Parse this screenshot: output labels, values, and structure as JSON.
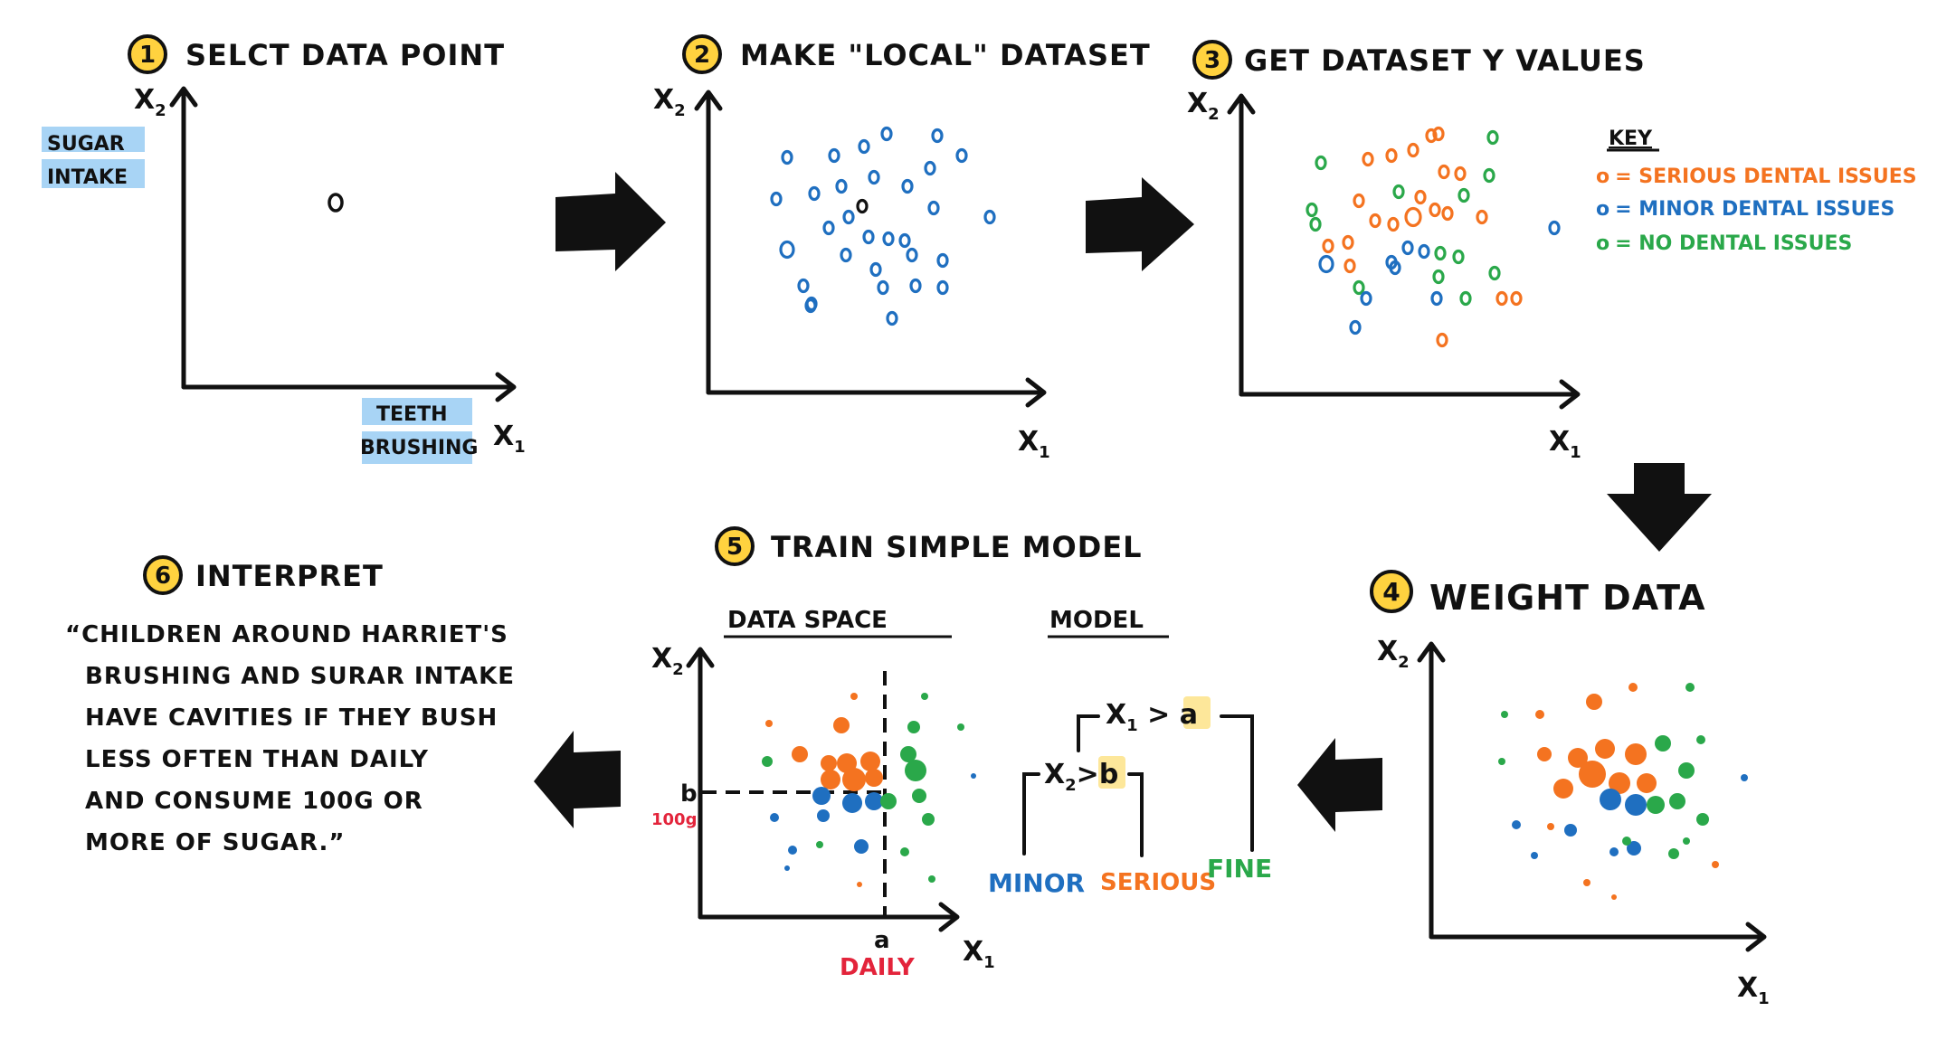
{
  "colors": {
    "serious": "#f47320",
    "minor": "#1f6fc0",
    "none": "#2aa84a",
    "number_badge": "#ffd23f",
    "highlight_blue": "#a8d4f5",
    "highlight_yellow": "#fde79a",
    "daily_red": "#e3243b"
  },
  "steps": {
    "s1": {
      "num": "1",
      "title": "SELCT DATA POINT"
    },
    "s2": {
      "num": "2",
      "title": "MAKE \"LOCAL\" DATASET"
    },
    "s3": {
      "num": "3",
      "title": "GET DATASET Y VALUES"
    },
    "s4": {
      "num": "4",
      "title": "WEIGHT DATA"
    },
    "s5": {
      "num": "5",
      "title": "TRAIN SIMPLE MODEL"
    },
    "s6": {
      "num": "6",
      "title": "INTERPRET"
    }
  },
  "axes": {
    "x": "X",
    "x_sub": "1",
    "y": "X",
    "y_sub": "2"
  },
  "panel1": {
    "y_label_line1": "SUGAR",
    "y_label_line2": "INTAKE",
    "x_label_line1": "TEETH",
    "x_label_line2": "BRUSHING"
  },
  "key": {
    "title": "KEY",
    "items": [
      {
        "symbol": "o",
        "label": "= SERIOUS DENTAL ISSUES",
        "color": "#f47320"
      },
      {
        "symbol": "o",
        "label": "= MINOR DENTAL ISSUES",
        "color": "#1f6fc0"
      },
      {
        "symbol": "o",
        "label": "= NO DENTAL ISSUES",
        "color": "#2aa84a"
      }
    ]
  },
  "panel5": {
    "data_space_title": "DATA SPACE",
    "model_title": "MODEL",
    "b_label": "b",
    "a_label": "a",
    "b_value": "100g",
    "a_value": "DAILY",
    "root_left": "X",
    "root_left_sub": "1",
    "root_op": " > ",
    "root_right": "a",
    "child_left": "X",
    "child_left_sub": "2",
    "child_op": ">",
    "child_right": "b",
    "leaf_minor": "MINOR",
    "leaf_serious": "SERIOUS",
    "leaf_fine": "FINE"
  },
  "interpret_lines": [
    "“CHILDREN AROUND HARRIET'S",
    "BRUSHING AND SURAR INTAKE",
    "HAVE CAVITIES IF THEY BUSH",
    "LESS OFTEN THAN DAILY",
    "AND CONSUME 100G OR",
    "MORE OF SUGAR.”"
  ]
}
